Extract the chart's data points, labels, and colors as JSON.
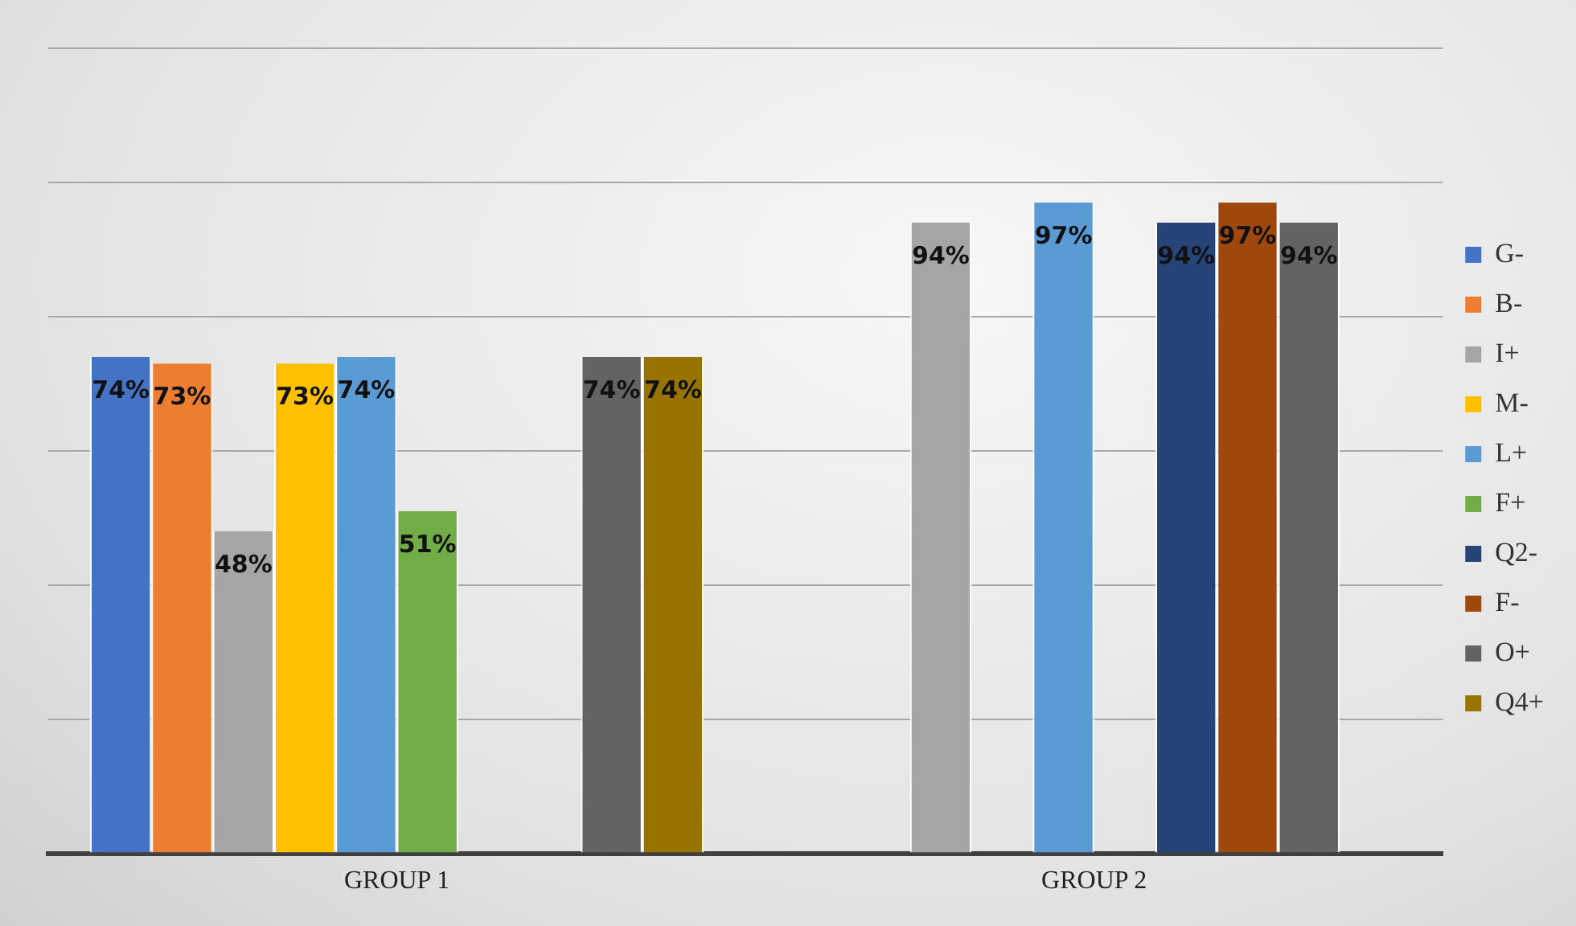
{
  "chart_data": {
    "type": "bar",
    "categories": [
      "GROUP 1",
      "GROUP 2"
    ],
    "series": [
      {
        "name": "G-",
        "color": "#4472c4",
        "values": [
          74,
          null
        ],
        "value_labels": [
          "74%",
          null
        ]
      },
      {
        "name": "B-",
        "color": "#ed7d31",
        "values": [
          73,
          null
        ],
        "value_labels": [
          "73%",
          null
        ]
      },
      {
        "name": "I+",
        "color": "#a5a5a5",
        "values": [
          48,
          94
        ],
        "value_labels": [
          "48%",
          "94%"
        ]
      },
      {
        "name": "M-",
        "color": "#ffc000",
        "values": [
          73,
          null
        ],
        "value_labels": [
          "73%",
          null
        ]
      },
      {
        "name": "L+",
        "color": "#5b9bd5",
        "values": [
          74,
          97
        ],
        "value_labels": [
          "74%",
          "97%"
        ]
      },
      {
        "name": "F+",
        "color": "#70ad47",
        "values": [
          51,
          null
        ],
        "value_labels": [
          "51%",
          null
        ]
      },
      {
        "name": "Q2-",
        "color": "#264478",
        "values": [
          null,
          94
        ],
        "value_labels": [
          null,
          "94%"
        ]
      },
      {
        "name": "F-",
        "color": "#9e480e",
        "values": [
          null,
          97
        ],
        "value_labels": [
          null,
          "97%"
        ]
      },
      {
        "name": "O+",
        "color": "#636363",
        "values": [
          74,
          94
        ],
        "value_labels": [
          "74%",
          "94%"
        ]
      },
      {
        "name": "Q4+",
        "color": "#997300",
        "values": [
          74,
          null
        ],
        "value_labels": [
          "74%",
          null
        ]
      }
    ],
    "ylim": [
      0,
      120
    ],
    "yticks": [
      {
        "value": 0,
        "label": null
      },
      {
        "value": 20,
        "label": null
      },
      {
        "value": 40,
        "label": null
      },
      {
        "value": 60,
        "label": null
      },
      {
        "value": 80,
        "label": null
      },
      {
        "value": 100,
        "label": null
      },
      {
        "value": 120,
        "label": null
      }
    ],
    "grid": "y",
    "legend": "right",
    "tick_labels": "x"
  }
}
